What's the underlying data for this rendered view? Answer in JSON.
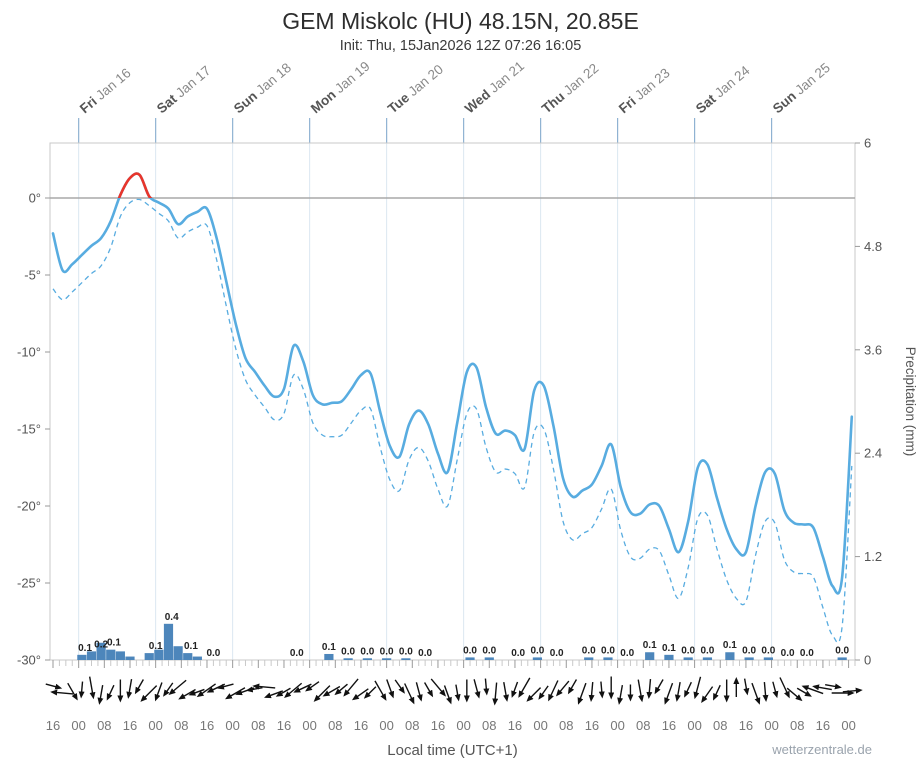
{
  "header": {
    "title": "GEM Miskolc (HU) 48.15N, 20.85E",
    "subtitle": "Init: Thu, 15Jan2026 12Z 07:26 16:05"
  },
  "footer": {
    "xlabel": "Local time (UTC+1)",
    "watermark": "wetterzentrale.de"
  },
  "chart_data": {
    "type": "line",
    "title": "GEM Miskolc (HU) 48.15N, 20.85E",
    "init_line": "Init: Thu, 15Jan2026 12Z 07:26 16:05",
    "x_start_hour": 0,
    "x_hours_step": 3,
    "x_total_hours": 250,
    "x_tick_labels": {
      "cycle": [
        "16",
        "00",
        "08"
      ],
      "every_hours": 8
    },
    "day_boundary_hours": [
      8,
      32,
      56,
      80,
      104,
      128,
      152,
      176,
      200,
      224
    ],
    "days": [
      {
        "name": "Fri",
        "date": "Jan 16"
      },
      {
        "name": "Sat",
        "date": "Jan 17"
      },
      {
        "name": "Sun",
        "date": "Jan 18"
      },
      {
        "name": "Mon",
        "date": "Jan 19"
      },
      {
        "name": "Tue",
        "date": "Jan 20"
      },
      {
        "name": "Wed",
        "date": "Jan 21"
      },
      {
        "name": "Thu",
        "date": "Jan 22"
      },
      {
        "name": "Fri",
        "date": "Jan 23"
      },
      {
        "name": "Sat",
        "date": "Jan 24"
      },
      {
        "name": "Sun",
        "date": "Jan 25"
      }
    ],
    "temp_axis": {
      "unit": "°C",
      "ticks": [
        "0°",
        "-5°",
        "-10°",
        "-15°",
        "-20°",
        "-25°",
        "-30°"
      ],
      "values": [
        0,
        -5,
        -10,
        -15,
        -20,
        -25,
        -30
      ],
      "min": -30,
      "max": 3.5
    },
    "precip_axis": {
      "label": "Precipitation (mm)",
      "ticks": [
        0,
        1.2,
        2.4,
        3.6,
        4.8,
        6
      ],
      "min": 0,
      "max": 6
    },
    "colors": {
      "line": "#58ace0",
      "above_zero": "#e8352b",
      "bar": "#4d86bb"
    },
    "series": [
      {
        "name": "2m temperature",
        "style": "solid",
        "values": [
          -2.3,
          -4.7,
          -4.3,
          -3.7,
          -3.1,
          -2.6,
          -1.5,
          0.2,
          1.3,
          1.5,
          0.1,
          -0.3,
          -0.7,
          -1.7,
          -1.2,
          -0.9,
          -0.7,
          -2.6,
          -5.4,
          -8.2,
          -10.4,
          -11.3,
          -12.2,
          -12.9,
          -12.4,
          -9.6,
          -10.6,
          -12.8,
          -13.4,
          -13.3,
          -13.2,
          -12.4,
          -11.5,
          -11.4,
          -13.9,
          -16.1,
          -16.8,
          -14.7,
          -13.8,
          -14.7,
          -16.6,
          -17.8,
          -14.6,
          -11.3,
          -11.0,
          -13.6,
          -15.3,
          -15.1,
          -15.4,
          -16.3,
          -12.5,
          -12.2,
          -14.8,
          -18.2,
          -19.4,
          -19.0,
          -18.6,
          -17.4,
          -16.0,
          -18.8,
          -20.4,
          -20.5,
          -19.9,
          -20.0,
          -21.5,
          -23.0,
          -21.0,
          -17.5,
          -17.3,
          -19.5,
          -21.5,
          -22.8,
          -23.0,
          -20.0,
          -17.8,
          -17.9,
          -20.3,
          -21.1,
          -21.2,
          -21.4,
          -23.3,
          -25.2,
          -24.6,
          -14.2
        ]
      },
      {
        "name": "dew point",
        "style": "dashed",
        "values": [
          -5.9,
          -6.6,
          -6.1,
          -5.5,
          -4.9,
          -4.4,
          -3.2,
          -1.2,
          -0.3,
          -0.1,
          -0.5,
          -1.0,
          -1.5,
          -2.6,
          -2.2,
          -1.9,
          -1.8,
          -4.0,
          -7.0,
          -9.8,
          -11.8,
          -12.8,
          -13.6,
          -14.4,
          -14.0,
          -11.5,
          -12.4,
          -14.6,
          -15.4,
          -15.5,
          -15.4,
          -14.6,
          -13.8,
          -13.7,
          -16.2,
          -18.3,
          -19.0,
          -17.0,
          -16.2,
          -17.1,
          -18.9,
          -20.0,
          -17.0,
          -14.0,
          -13.7,
          -16.2,
          -17.8,
          -17.6,
          -17.9,
          -18.8,
          -15.2,
          -15.0,
          -17.6,
          -21.0,
          -22.2,
          -21.8,
          -21.4,
          -20.2,
          -18.9,
          -21.6,
          -23.3,
          -23.4,
          -22.8,
          -22.9,
          -24.5,
          -26.0,
          -24.0,
          -20.8,
          -20.6,
          -22.8,
          -24.8,
          -26.0,
          -26.2,
          -23.2,
          -21.0,
          -21.1,
          -23.5,
          -24.3,
          -24.4,
          -24.6,
          -26.6,
          -28.4,
          -27.8,
          -17.4
        ]
      }
    ],
    "precip_bars": [
      {
        "t": 9,
        "v": 0.06
      },
      {
        "t": 12,
        "v": 0.1
      },
      {
        "t": 15,
        "v": 0.2
      },
      {
        "t": 18,
        "v": 0.12
      },
      {
        "t": 21,
        "v": 0.1
      },
      {
        "t": 24,
        "v": 0.04
      },
      {
        "t": 30,
        "v": 0.08
      },
      {
        "t": 33,
        "v": 0.12
      },
      {
        "t": 36,
        "v": 0.42
      },
      {
        "t": 39,
        "v": 0.16
      },
      {
        "t": 42,
        "v": 0.08
      },
      {
        "t": 45,
        "v": 0.04
      },
      {
        "t": 86,
        "v": 0.07
      },
      {
        "t": 92,
        "v": 0.02
      },
      {
        "t": 98,
        "v": 0.02
      },
      {
        "t": 104,
        "v": 0.02
      },
      {
        "t": 110,
        "v": 0.02
      },
      {
        "t": 130,
        "v": 0.03
      },
      {
        "t": 136,
        "v": 0.03
      },
      {
        "t": 151,
        "v": 0.03
      },
      {
        "t": 167,
        "v": 0.03
      },
      {
        "t": 173,
        "v": 0.03
      },
      {
        "t": 186,
        "v": 0.09
      },
      {
        "t": 192,
        "v": 0.06
      },
      {
        "t": 198,
        "v": 0.03
      },
      {
        "t": 204,
        "v": 0.03
      },
      {
        "t": 211,
        "v": 0.09
      },
      {
        "t": 217,
        "v": 0.03
      },
      {
        "t": 223,
        "v": 0.03
      },
      {
        "t": 246,
        "v": 0.03
      }
    ],
    "precip_labels": [
      {
        "t": 10,
        "text": "0.1"
      },
      {
        "t": 15,
        "text": "0.2"
      },
      {
        "t": 19,
        "text": "0.1"
      },
      {
        "t": 32,
        "text": "0.1"
      },
      {
        "t": 37,
        "text": "0.4"
      },
      {
        "t": 43,
        "text": "0.1"
      },
      {
        "t": 50,
        "text": "0.0"
      },
      {
        "t": 76,
        "text": "0.0"
      },
      {
        "t": 86,
        "text": "0.1"
      },
      {
        "t": 92,
        "text": "0.0"
      },
      {
        "t": 98,
        "text": "0.0"
      },
      {
        "t": 104,
        "text": "0.0"
      },
      {
        "t": 110,
        "text": "0.0"
      },
      {
        "t": 116,
        "text": "0.0"
      },
      {
        "t": 130,
        "text": "0.0"
      },
      {
        "t": 136,
        "text": "0.0"
      },
      {
        "t": 145,
        "text": "0.0"
      },
      {
        "t": 151,
        "text": "0.0"
      },
      {
        "t": 157,
        "text": "0.0"
      },
      {
        "t": 167,
        "text": "0.0"
      },
      {
        "t": 173,
        "text": "0.0"
      },
      {
        "t": 179,
        "text": "0.0"
      },
      {
        "t": 186,
        "text": "0.1"
      },
      {
        "t": 192,
        "text": "0.1"
      },
      {
        "t": 198,
        "text": "0.0"
      },
      {
        "t": 204,
        "text": "0.0"
      },
      {
        "t": 211,
        "text": "0.1"
      },
      {
        "t": 217,
        "text": "0.0"
      },
      {
        "t": 223,
        "text": "0.0"
      },
      {
        "t": 229,
        "text": "0.0"
      },
      {
        "t": 235,
        "text": "0.0"
      },
      {
        "t": 246,
        "text": "0.0"
      }
    ],
    "wind_arrows_deg": [
      15,
      185,
      60,
      95,
      80,
      100,
      115,
      90,
      100,
      120,
      135,
      110,
      125,
      140,
      150,
      160,
      145,
      155,
      165,
      150,
      160,
      170,
      185,
      160,
      150,
      140,
      155,
      145,
      135,
      150,
      140,
      130,
      145,
      135,
      60,
      70,
      55,
      65,
      75,
      60,
      50,
      70,
      80,
      90,
      75,
      85,
      95,
      80,
      110,
      120,
      135,
      125,
      115,
      130,
      120,
      110,
      95,
      85,
      90,
      100,
      90,
      80,
      95,
      120,
      110,
      100,
      115,
      105,
      125,
      115,
      90,
      270,
      80,
      70,
      85,
      75,
      65,
      40,
      30,
      200,
      190,
      10,
      0,
      355
    ]
  }
}
